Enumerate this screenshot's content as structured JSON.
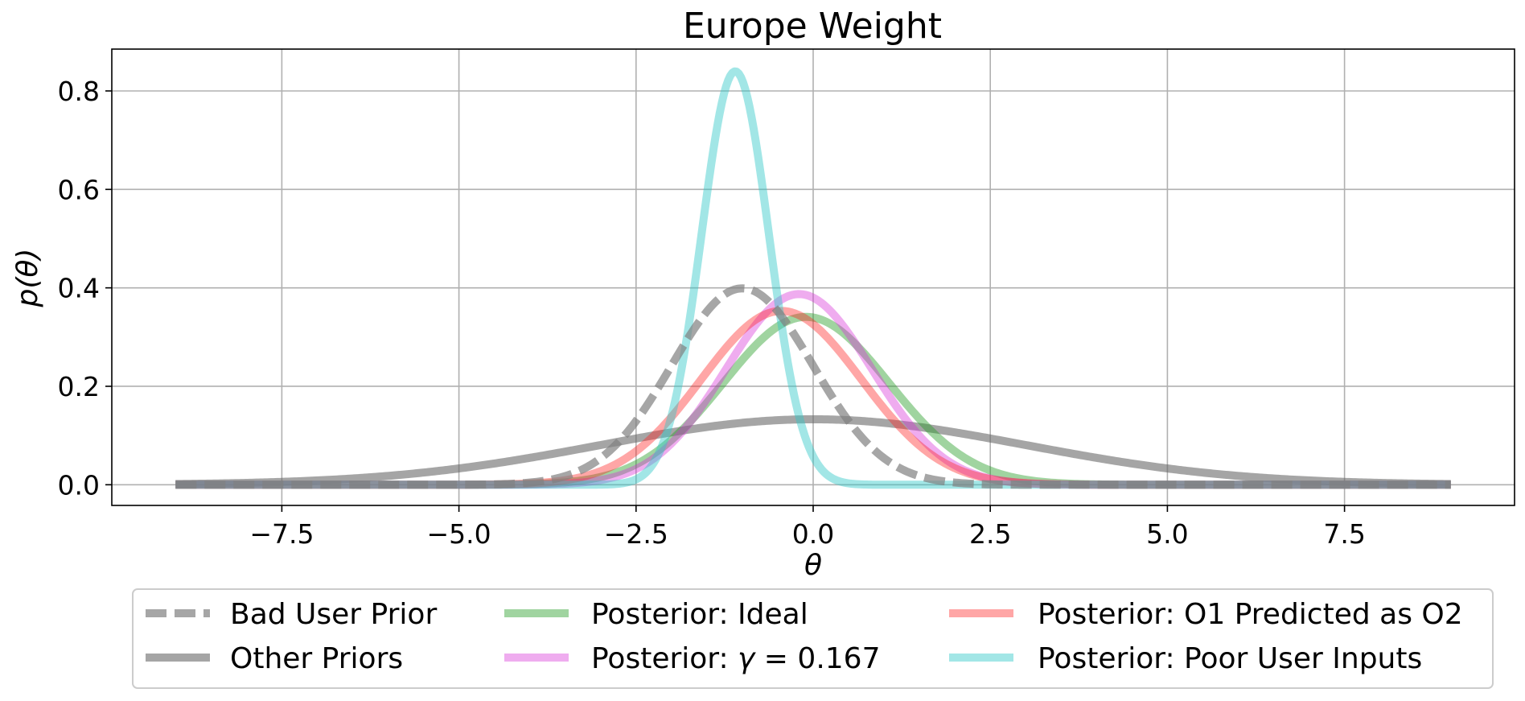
{
  "chart_data": {
    "type": "line",
    "title": "Europe Weight",
    "xlabel": "θ",
    "ylabel": "p(θ)",
    "xlim": [
      -9.9,
      9.9
    ],
    "ylim": [
      -0.042,
      0.885
    ],
    "grid": true,
    "legend_position": "below plot, 3 columns",
    "x_ticks": [
      -7.5,
      -5.0,
      -2.5,
      0.0,
      2.5,
      5.0,
      7.5
    ],
    "x_tick_labels": [
      "−7.5",
      "−5.0",
      "−2.5",
      "0.0",
      "2.5",
      "5.0",
      "7.5"
    ],
    "y_ticks": [
      0.0,
      0.2,
      0.4,
      0.6,
      0.8
    ],
    "y_tick_labels": [
      "0.0",
      "0.2",
      "0.4",
      "0.6",
      "0.8"
    ],
    "x_range": [
      -9,
      9
    ],
    "series": [
      {
        "name": "Bad User Prior",
        "distribution": "normal",
        "mean": -1.0,
        "sd": 1.0,
        "color": "#808080",
        "dash": true,
        "peak": 0.4
      },
      {
        "name": "Other Priors",
        "distribution": "normal",
        "mean": 0.0,
        "sd": 3.0,
        "color": "#696969",
        "dash": false,
        "peak": 0.133
      },
      {
        "name": "Posterior: Ideal",
        "distribution": "normal",
        "mean": -0.1,
        "sd": 1.17,
        "color": "#2ca02c",
        "dash": false,
        "peak": 0.34
      },
      {
        "name": "Posterior: γ = 0.167",
        "distribution": "normal",
        "mean": -0.2,
        "sd": 1.03,
        "color": "#d62fd6",
        "dash": false,
        "peak": 0.387
      },
      {
        "name": "Posterior: O1 Predicted as O2",
        "distribution": "normal",
        "mean": -0.45,
        "sd": 1.13,
        "color": "#ff2020",
        "dash": false,
        "peak": 0.353
      },
      {
        "name": "Posterior: Poor User Inputs",
        "distribution": "normal",
        "mean": -1.1,
        "sd": 0.475,
        "color": "#30c7c7",
        "dash": false,
        "peak": 0.84
      }
    ]
  },
  "legend": {
    "items": [
      {
        "label": "Bad User Prior",
        "color": "#808080",
        "dash": true
      },
      {
        "label": "Other Priors",
        "color": "#696969",
        "dash": false
      },
      {
        "label": "Posterior: Ideal",
        "color": "#2ca02c",
        "dash": false
      },
      {
        "label": "Posterior: ",
        "gamma_symbol": "γ",
        "gamma_value": " = 0.167",
        "color": "#d62fd6",
        "dash": false
      },
      {
        "label": "Posterior: O1 Predicted as O2",
        "color": "#ff2020",
        "dash": false
      },
      {
        "label": "Posterior: Poor User Inputs",
        "color": "#30c7c7",
        "dash": false
      }
    ]
  }
}
